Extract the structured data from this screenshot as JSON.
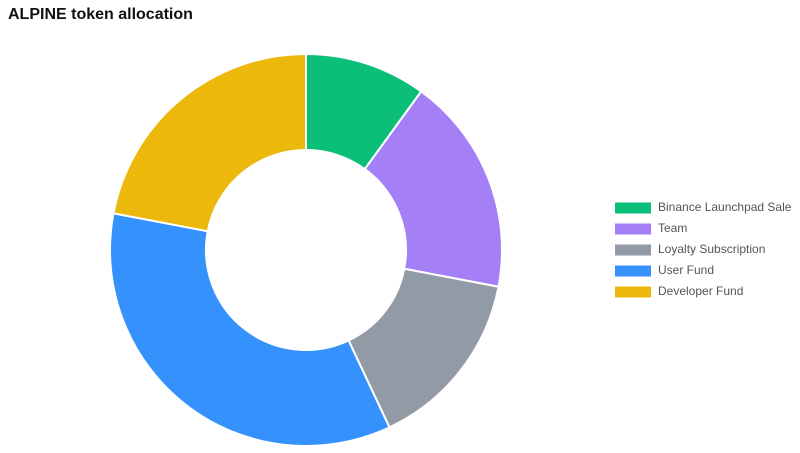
{
  "chart_data": {
    "type": "donut",
    "title": "ALPINE token allocation",
    "categories": [
      "Binance Launchpad Sale",
      "Team",
      "Loyalty Subscription",
      "User Fund",
      "Developer Fund"
    ],
    "values": [
      10,
      18,
      15,
      35,
      22
    ],
    "colors": [
      "#0bbf78",
      "#a47ff5",
      "#929aa5",
      "#3591fc",
      "#ecb80b"
    ],
    "legend": "right"
  }
}
